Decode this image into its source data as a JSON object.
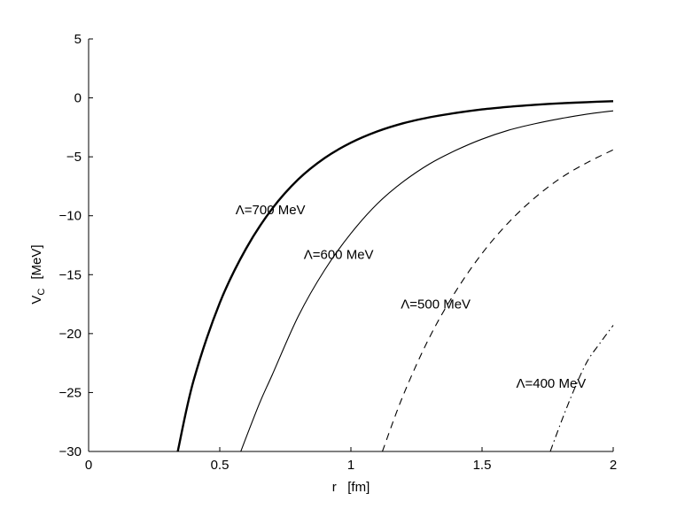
{
  "chart_data": {
    "type": "line",
    "title": "",
    "xlabel": "r   [fm]",
    "ylabel_main": "V",
    "ylabel_sub": "C",
    "ylabel_unit": "[MeV]",
    "xlim": [
      0,
      2
    ],
    "ylim": [
      -30,
      5
    ],
    "xticks": [
      0,
      0.5,
      1,
      1.5,
      2
    ],
    "xtick_labels": [
      "0",
      "0.5",
      "1",
      "1.5",
      "2"
    ],
    "yticks": [
      5,
      0,
      -5,
      -10,
      -15,
      -20,
      -25,
      -30
    ],
    "ytick_labels": [
      "5",
      "0",
      "−5",
      "−10",
      "−15",
      "−20",
      "−25",
      "−30"
    ],
    "grid": false,
    "legend": "none",
    "series": [
      {
        "name": "Λ=700 MeV",
        "style": "solid-thick",
        "x": [
          0.34,
          0.4,
          0.5,
          0.6,
          0.7,
          0.8,
          0.9,
          1.0,
          1.1,
          1.2,
          1.3,
          1.4,
          1.5,
          1.6,
          1.7,
          1.8,
          1.9,
          2.0
        ],
        "y": [
          -30.0,
          -24.0,
          -17.4,
          -12.8,
          -9.4,
          -6.9,
          -5.1,
          -3.8,
          -2.85,
          -2.15,
          -1.65,
          -1.28,
          -0.98,
          -0.76,
          -0.59,
          -0.46,
          -0.36,
          -0.28
        ]
      },
      {
        "name": "Λ=600 MeV",
        "style": "solid-thin",
        "x": [
          0.58,
          0.65,
          0.7,
          0.8,
          0.9,
          1.0,
          1.1,
          1.2,
          1.3,
          1.4,
          1.5,
          1.6,
          1.7,
          1.8,
          1.9,
          2.0
        ],
        "y": [
          -30.0,
          -26.0,
          -23.5,
          -18.5,
          -14.6,
          -11.5,
          -9.0,
          -7.1,
          -5.6,
          -4.45,
          -3.5,
          -2.75,
          -2.2,
          -1.75,
          -1.38,
          -1.1
        ]
      },
      {
        "name": "Λ=500 MeV",
        "style": "dashed",
        "x": [
          1.12,
          1.2,
          1.3,
          1.4,
          1.5,
          1.6,
          1.7,
          1.8,
          1.9,
          2.0
        ],
        "y": [
          -30.0,
          -25.2,
          -20.3,
          -16.4,
          -13.2,
          -10.6,
          -8.5,
          -6.8,
          -5.5,
          -4.4
        ]
      },
      {
        "name": "Λ=400 MeV",
        "style": "dashdot",
        "x": [
          1.76,
          1.8,
          1.85,
          1.9,
          1.95,
          2.0
        ],
        "y": [
          -30.0,
          -27.6,
          -24.8,
          -22.4,
          -20.8,
          -19.3
        ]
      }
    ],
    "annotations": [
      {
        "text": "Λ=700 MeV",
        "x": 0.56,
        "y": -9.5
      },
      {
        "text": "Λ=600 MeV",
        "x": 0.82,
        "y": -13.3
      },
      {
        "text": "Λ=500 MeV",
        "x": 1.19,
        "y": -17.5
      },
      {
        "text": "Λ=400 MeV",
        "x": 1.63,
        "y": -24.2
      }
    ]
  }
}
